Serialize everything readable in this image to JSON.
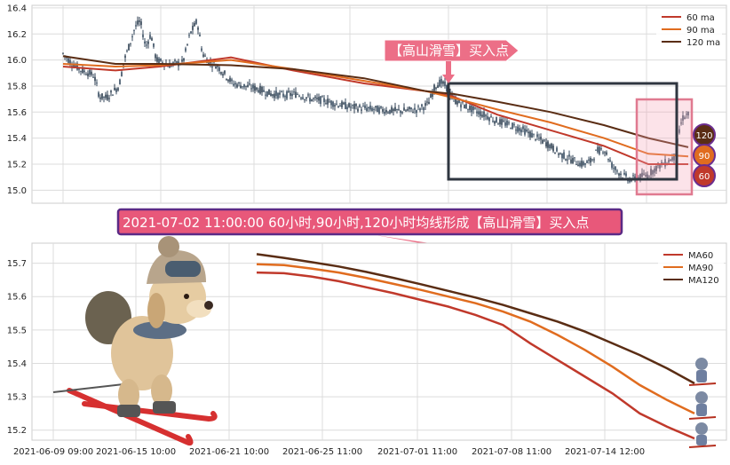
{
  "chart_data": [
    {
      "type": "line",
      "panel": "candlestick-with-moving-averages",
      "ylim": [
        14.9,
        16.42
      ],
      "y_ticks": [
        "15.0",
        "15.2",
        "15.4",
        "15.6",
        "15.8",
        "16.0",
        "16.2",
        "16.4"
      ],
      "grid": true,
      "legend": "top-right",
      "series": [
        {
          "name": "60 ma",
          "color": "#c0392b"
        },
        {
          "name": "90 ma",
          "color": "#e06c1f"
        },
        {
          "name": "120 ma",
          "color": "#5a2d14"
        }
      ],
      "badges": [
        "120",
        "90",
        "60"
      ],
      "annotation": "【高山滑雪】买入点"
    },
    {
      "type": "line",
      "panel": "moving-averages-zoom",
      "x_ticks": [
        "2021-06-09 09:00",
        "2021-06-15 10:00",
        "2021-06-21 10:00",
        "2021-06-25 11:00",
        "2021-07-01 11:00",
        "2021-07-08 11:00",
        "2021-07-14 12:00"
      ],
      "ylim": [
        15.17,
        15.76
      ],
      "y_ticks": [
        "15.2",
        "15.3",
        "15.4",
        "15.5",
        "15.6",
        "15.7"
      ],
      "grid": true,
      "legend": "top-right",
      "series": [
        {
          "name": "MA60",
          "color": "#c0392b",
          "values": [
            15.672,
            15.67,
            15.66,
            15.646,
            15.628,
            15.61,
            15.59,
            15.57,
            15.545,
            15.515,
            15.46,
            15.41,
            15.36,
            15.31,
            15.25,
            15.21,
            15.175
          ]
        },
        {
          "name": "MA90",
          "color": "#e06c1f",
          "values": [
            15.697,
            15.694,
            15.684,
            15.672,
            15.656,
            15.638,
            15.62,
            15.6,
            15.58,
            15.555,
            15.525,
            15.485,
            15.44,
            15.39,
            15.335,
            15.29,
            15.25
          ]
        },
        {
          "name": "MA120",
          "color": "#5a2d14",
          "values": [
            15.727,
            15.716,
            15.703,
            15.69,
            15.674,
            15.656,
            15.637,
            15.617,
            15.597,
            15.575,
            15.55,
            15.525,
            15.495,
            15.46,
            15.425,
            15.385,
            15.34
          ]
        }
      ]
    }
  ],
  "banner": {
    "text": "2021-07-02 11:00:00 60小时,90小时,120小时均线形成【高山滑雪】买入点"
  }
}
